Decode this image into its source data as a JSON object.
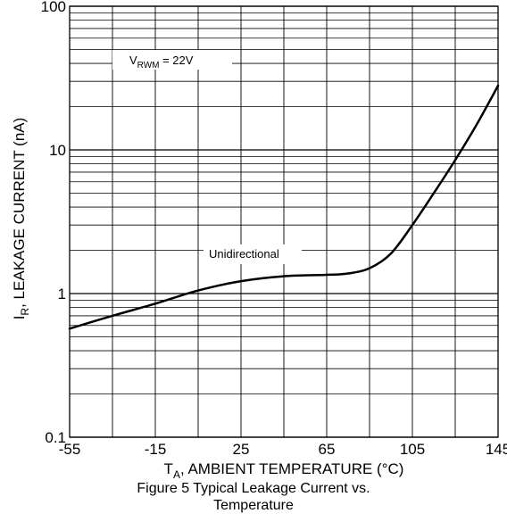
{
  "chart_data": {
    "type": "line",
    "xlabel_main": "T",
    "xlabel_sub": "A",
    "xlabel_rest": ", AMBIENT TEMPERATURE (°C)",
    "ylabel_main": "I",
    "ylabel_sub": "R",
    "ylabel_rest": ", LEAKAGE CURRENT (nA)",
    "xlim": [
      -55,
      145
    ],
    "ylim": [
      0.1,
      100
    ],
    "y_scale": "log",
    "grid": true,
    "x_ticks": [
      -55,
      -15,
      25,
      65,
      105,
      145
    ],
    "x_tick_labels": [
      "-55",
      "-15",
      "25",
      "65",
      "105",
      "145"
    ],
    "y_ticks": [
      0.1,
      1,
      10,
      100
    ],
    "y_tick_labels": [
      "0.1",
      "1",
      "10",
      "100"
    ],
    "series": [
      {
        "name": "Unidirectional",
        "x": [
          -55,
          -35,
          -15,
          5,
          25,
          45,
          65,
          75,
          85,
          95,
          105,
          115,
          125,
          135,
          145
        ],
        "y": [
          0.57,
          0.7,
          0.85,
          1.05,
          1.22,
          1.32,
          1.35,
          1.38,
          1.5,
          1.9,
          3.0,
          5.0,
          8.5,
          15,
          28
        ]
      }
    ],
    "annotations": {
      "vrwm_main": "V",
      "vrwm_sub": "RWM",
      "vrwm_rest": " = 22V",
      "unidirectional": "Unidirectional"
    }
  },
  "caption": {
    "line1": "Figure 5  Typical Leakage Current vs.",
    "line2": "Temperature"
  }
}
